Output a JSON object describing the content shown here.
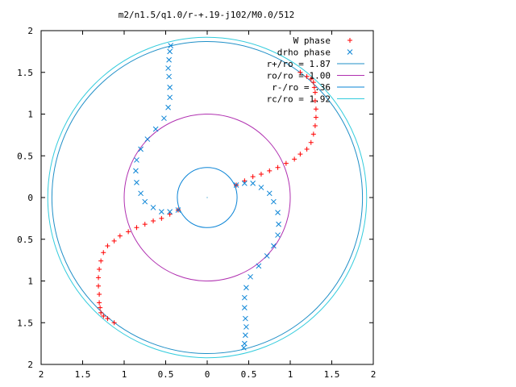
{
  "chart_data": {
    "type": "scatter",
    "title": "m2/n1.5/q1.0/r-+.19-j102/M0.0/512",
    "xlim": [
      -2,
      2
    ],
    "ylim": [
      -2,
      2
    ],
    "x_tick_values": [
      -2,
      -1.5,
      -1,
      -0.5,
      0,
      0.5,
      1,
      1.5,
      2
    ],
    "x_tick_labels": [
      "2",
      "1.5",
      "1",
      "0.5",
      "0",
      "0.5",
      "1",
      "1.5",
      "2"
    ],
    "y_tick_values": [
      2,
      1.5,
      1,
      0.5,
      0,
      -0.5,
      -1,
      -1.5,
      -2
    ],
    "y_tick_labels": [
      "2",
      "1.5",
      "1",
      "0.5",
      "0",
      "0.5",
      "1",
      "1.5",
      "2"
    ],
    "grid": false,
    "legend_position": "top-right",
    "series": [
      {
        "name": "W phase",
        "marker": "+",
        "color": "#ff0000",
        "x": [
          -0.35,
          -0.45,
          -0.55,
          -0.65,
          -0.75,
          -0.85,
          -0.95,
          -1.05,
          -1.12,
          -1.2,
          -1.25,
          -1.28,
          -1.3,
          -1.31,
          -1.31,
          -1.3,
          -1.3,
          -1.29,
          -1.28,
          -1.25,
          -1.2,
          -1.12,
          0.35,
          0.45,
          0.55,
          0.65,
          0.75,
          0.85,
          0.95,
          1.05,
          1.12,
          1.2,
          1.25,
          1.28,
          1.3,
          1.31,
          1.31,
          1.3,
          1.3,
          1.29,
          1.28,
          1.25,
          1.2,
          1.12
        ],
        "y": [
          -0.15,
          -0.2,
          -0.25,
          -0.28,
          -0.32,
          -0.36,
          -0.41,
          -0.46,
          -0.52,
          -0.58,
          -0.66,
          -0.76,
          -0.86,
          -0.96,
          -1.06,
          -1.16,
          -1.26,
          -1.32,
          -1.38,
          -1.42,
          -1.45,
          -1.5,
          0.15,
          0.2,
          0.25,
          0.28,
          0.32,
          0.36,
          0.41,
          0.46,
          0.52,
          0.58,
          0.66,
          0.76,
          0.86,
          0.96,
          1.06,
          1.16,
          1.26,
          1.32,
          1.38,
          1.42,
          1.45,
          1.5
        ]
      },
      {
        "name": "drho phase",
        "marker": "x",
        "color": "#0a84d6",
        "x": [
          0.35,
          0.45,
          0.55,
          0.65,
          0.75,
          0.8,
          0.85,
          0.86,
          0.85,
          0.8,
          0.72,
          0.62,
          0.52,
          0.47,
          0.45,
          0.45,
          0.46,
          0.47,
          0.46,
          0.45,
          0.44,
          -0.35,
          -0.45,
          -0.55,
          -0.65,
          -0.75,
          -0.8,
          -0.85,
          -0.86,
          -0.85,
          -0.8,
          -0.72,
          -0.62,
          -0.52,
          -0.47,
          -0.45,
          -0.45,
          -0.46,
          -0.47,
          -0.46,
          -0.45,
          -0.44
        ],
        "y": [
          0.15,
          0.17,
          0.17,
          0.12,
          0.05,
          -0.05,
          -0.18,
          -0.32,
          -0.45,
          -0.58,
          -0.7,
          -0.82,
          -0.95,
          -1.08,
          -1.2,
          -1.32,
          -1.45,
          -1.55,
          -1.65,
          -1.75,
          -1.8,
          -0.15,
          -0.17,
          -0.17,
          -0.12,
          -0.05,
          0.05,
          0.18,
          0.32,
          0.45,
          0.58,
          0.7,
          0.82,
          0.95,
          1.08,
          1.2,
          1.32,
          1.45,
          1.55,
          1.65,
          1.75,
          1.82
        ]
      }
    ],
    "circles": [
      {
        "name": "r+/ro = 1.87",
        "radius": 1.87,
        "color": "#1f8fc7"
      },
      {
        "name": "ro/ro = 1.00",
        "radius": 1.0,
        "color": "#b030b0"
      },
      {
        "name": "r-/ro = .36",
        "radius": 0.36,
        "color": "#0a84d6"
      },
      {
        "name": "rc/ro = 1.92",
        "radius": 1.92,
        "color": "#33ccdd"
      }
    ]
  }
}
